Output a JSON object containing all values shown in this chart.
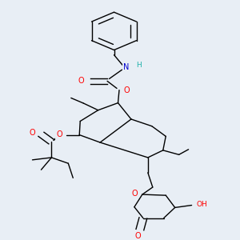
{
  "background_color": "#e8eef5",
  "bond_color": "#000000",
  "atom_colors": {
    "O": "#ff0000",
    "N": "#0000cd",
    "H": "#20b2aa",
    "C": "#000000"
  }
}
